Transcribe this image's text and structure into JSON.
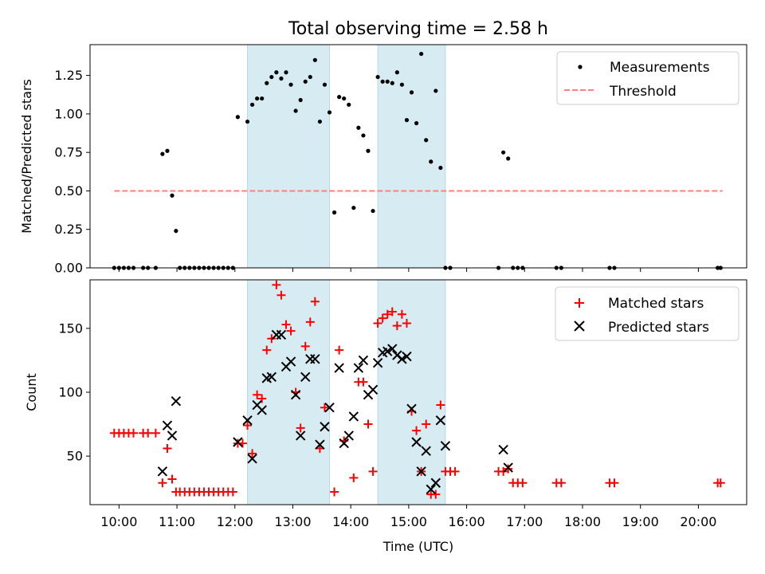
{
  "chart_data": [
    {
      "panel": "top",
      "type": "scatter",
      "title": "Total observing time = 2.58 h",
      "xlabel": "",
      "ylabel": "Matched/Predicted stars",
      "ylim": [
        0.0,
        1.45
      ],
      "yticks": [
        "0.00",
        "0.25",
        "0.50",
        "0.75",
        "1.00",
        "1.25"
      ],
      "ytick_values": [
        0,
        0.25,
        0.5,
        0.75,
        1.0,
        1.25
      ],
      "legend": {
        "placement": "top-right",
        "entries": [
          "Measurements",
          "Threshold"
        ]
      },
      "shaded_intervals_utc": [
        [
          "12:13",
          "13:38"
        ],
        [
          "14:28",
          "15:38"
        ]
      ],
      "colors": {
        "measurements": "#000000",
        "threshold": "#ff7f7f",
        "shade": "#add8e6"
      },
      "threshold": {
        "name": "Threshold",
        "value": 0.5,
        "x_range": [
          "09:55",
          "20:25"
        ]
      },
      "series": [
        {
          "name": "Measurements",
          "marker": "dot",
          "points": [
            [
              "09:55",
              0
            ],
            [
              "10:00",
              0
            ],
            [
              "10:05",
              0
            ],
            [
              "10:10",
              0
            ],
            [
              "10:15",
              0
            ],
            [
              "10:25",
              0
            ],
            [
              "10:30",
              0
            ],
            [
              "10:38",
              0
            ],
            [
              "10:45",
              0.74
            ],
            [
              "10:50",
              0.76
            ],
            [
              "10:55",
              0.47
            ],
            [
              "10:59",
              0.24
            ],
            [
              "11:03",
              0
            ],
            [
              "11:08",
              0
            ],
            [
              "11:13",
              0
            ],
            [
              "11:18",
              0
            ],
            [
              "11:23",
              0
            ],
            [
              "11:28",
              0
            ],
            [
              "11:33",
              0
            ],
            [
              "11:38",
              0
            ],
            [
              "11:43",
              0
            ],
            [
              "11:48",
              0
            ],
            [
              "11:53",
              0
            ],
            [
              "11:58",
              0
            ],
            [
              "12:03",
              0.98
            ],
            [
              "12:13",
              0.95
            ],
            [
              "12:18",
              1.06
            ],
            [
              "12:23",
              1.1
            ],
            [
              "12:28",
              1.1
            ],
            [
              "12:33",
              1.2
            ],
            [
              "12:38",
              1.24
            ],
            [
              "12:43",
              1.27
            ],
            [
              "12:48",
              1.23
            ],
            [
              "12:53",
              1.27
            ],
            [
              "12:58",
              1.19
            ],
            [
              "13:03",
              1.02
            ],
            [
              "13:08",
              1.09
            ],
            [
              "13:13",
              1.21
            ],
            [
              "13:18",
              1.24
            ],
            [
              "13:23",
              1.35
            ],
            [
              "13:28",
              0.95
            ],
            [
              "13:33",
              1.19
            ],
            [
              "13:38",
              1.01
            ],
            [
              "13:43",
              0.36
            ],
            [
              "13:48",
              1.11
            ],
            [
              "13:53",
              1.1
            ],
            [
              "13:58",
              1.06
            ],
            [
              "14:03",
              0.39
            ],
            [
              "14:08",
              0.91
            ],
            [
              "14:13",
              0.86
            ],
            [
              "14:18",
              0.76
            ],
            [
              "14:23",
              0.37
            ],
            [
              "14:28",
              1.24
            ],
            [
              "14:33",
              1.21
            ],
            [
              "14:38",
              1.21
            ],
            [
              "14:43",
              1.2
            ],
            [
              "14:48",
              1.27
            ],
            [
              "14:53",
              1.19
            ],
            [
              "14:58",
              0.96
            ],
            [
              "15:03",
              1.14
            ],
            [
              "15:08",
              0.94
            ],
            [
              "15:13",
              1.39
            ],
            [
              "15:18",
              0.83
            ],
            [
              "15:23",
              0.69
            ],
            [
              "15:28",
              1.15
            ],
            [
              "15:33",
              0.65
            ],
            [
              "15:38",
              0
            ],
            [
              "15:43",
              0
            ],
            [
              "16:33",
              0
            ],
            [
              "16:38",
              0.75
            ],
            [
              "16:43",
              0.71
            ],
            [
              "16:48",
              0
            ],
            [
              "16:53",
              0
            ],
            [
              "16:58",
              0
            ],
            [
              "17:33",
              0
            ],
            [
              "17:38",
              0
            ],
            [
              "18:28",
              0
            ],
            [
              "18:33",
              0
            ],
            [
              "20:20",
              0
            ],
            [
              "20:23",
              0
            ]
          ]
        }
      ]
    },
    {
      "panel": "bottom",
      "type": "scatter",
      "xlabel": "Time (UTC)",
      "ylabel": "Count",
      "ylim": [
        12,
        188
      ],
      "yticks": [
        "50",
        "100",
        "150"
      ],
      "ytick_values": [
        50,
        100,
        150
      ],
      "xlim": [
        "09:30",
        "20:50"
      ],
      "xticks": [
        "10:00",
        "11:00",
        "12:00",
        "13:00",
        "14:00",
        "15:00",
        "16:00",
        "17:00",
        "18:00",
        "19:00",
        "20:00"
      ],
      "legend": {
        "placement": "top-right",
        "entries": [
          "Matched stars",
          "Predicted stars"
        ]
      },
      "shaded_intervals_utc": [
        [
          "12:13",
          "13:38"
        ],
        [
          "14:28",
          "15:38"
        ]
      ],
      "colors": {
        "matched": "#ff0000",
        "predicted": "#000000",
        "shade": "#add8e6"
      },
      "series": [
        {
          "name": "Matched stars",
          "marker": "plus",
          "points": [
            [
              "09:55",
              68
            ],
            [
              "10:00",
              68
            ],
            [
              "10:05",
              68
            ],
            [
              "10:10",
              68
            ],
            [
              "10:15",
              68
            ],
            [
              "10:25",
              68
            ],
            [
              "10:30",
              68
            ],
            [
              "10:38",
              68
            ],
            [
              "10:45",
              29
            ],
            [
              "10:50",
              56
            ],
            [
              "10:55",
              32
            ],
            [
              "10:59",
              22
            ],
            [
              "11:03",
              22
            ],
            [
              "11:08",
              22
            ],
            [
              "11:13",
              22
            ],
            [
              "11:18",
              22
            ],
            [
              "11:23",
              22
            ],
            [
              "11:28",
              22
            ],
            [
              "11:33",
              22
            ],
            [
              "11:38",
              22
            ],
            [
              "11:43",
              22
            ],
            [
              "11:48",
              22
            ],
            [
              "11:53",
              22
            ],
            [
              "11:58",
              22
            ],
            [
              "12:03",
              60
            ],
            [
              "12:08",
              60
            ],
            [
              "12:13",
              74
            ],
            [
              "12:18",
              52
            ],
            [
              "12:23",
              98
            ],
            [
              "12:28",
              95
            ],
            [
              "12:33",
              133
            ],
            [
              "12:38",
              142
            ],
            [
              "12:43",
              184
            ],
            [
              "12:48",
              176
            ],
            [
              "12:53",
              153
            ],
            [
              "12:58",
              148
            ],
            [
              "13:03",
              100
            ],
            [
              "13:08",
              72
            ],
            [
              "13:13",
              136
            ],
            [
              "13:18",
              155
            ],
            [
              "13:23",
              171
            ],
            [
              "13:28",
              56
            ],
            [
              "13:33",
              88
            ],
            [
              "13:43",
              22
            ],
            [
              "13:48",
              133
            ],
            [
              "13:53",
              62
            ],
            [
              "14:03",
              33
            ],
            [
              "14:08",
              108
            ],
            [
              "14:13",
              108
            ],
            [
              "14:18",
              75
            ],
            [
              "14:23",
              38
            ],
            [
              "14:28",
              154
            ],
            [
              "14:33",
              158
            ],
            [
              "14:38",
              161
            ],
            [
              "14:43",
              163
            ],
            [
              "14:48",
              152
            ],
            [
              "14:53",
              161
            ],
            [
              "14:58",
              154
            ],
            [
              "15:03",
              85
            ],
            [
              "15:08",
              70
            ],
            [
              "15:13",
              38
            ],
            [
              "15:18",
              75
            ],
            [
              "15:23",
              20
            ],
            [
              "15:28",
              20
            ],
            [
              "15:33",
              90
            ],
            [
              "15:38",
              38
            ],
            [
              "15:43",
              38
            ],
            [
              "15:48",
              38
            ],
            [
              "16:33",
              38
            ],
            [
              "16:38",
              38
            ],
            [
              "16:43",
              40
            ],
            [
              "16:48",
              29
            ],
            [
              "16:53",
              29
            ],
            [
              "16:58",
              29
            ],
            [
              "17:33",
              29
            ],
            [
              "17:38",
              29
            ],
            [
              "18:28",
              29
            ],
            [
              "18:33",
              29
            ],
            [
              "20:20",
              29
            ],
            [
              "20:23",
              29
            ]
          ]
        },
        {
          "name": "Predicted stars",
          "marker": "x",
          "points": [
            [
              "10:45",
              38
            ],
            [
              "10:50",
              74
            ],
            [
              "10:55",
              66
            ],
            [
              "10:59",
              93
            ],
            [
              "12:03",
              61
            ],
            [
              "12:13",
              78
            ],
            [
              "12:18",
              48
            ],
            [
              "12:23",
              90
            ],
            [
              "12:28",
              86
            ],
            [
              "12:33",
              111
            ],
            [
              "12:38",
              112
            ],
            [
              "12:43",
              145
            ],
            [
              "12:48",
              145
            ],
            [
              "12:53",
              120
            ],
            [
              "12:58",
              124
            ],
            [
              "13:03",
              98
            ],
            [
              "13:08",
              66
            ],
            [
              "13:13",
              112
            ],
            [
              "13:18",
              126
            ],
            [
              "13:23",
              126
            ],
            [
              "13:28",
              59
            ],
            [
              "13:33",
              73
            ],
            [
              "13:38",
              88
            ],
            [
              "13:48",
              119
            ],
            [
              "13:53",
              60
            ],
            [
              "13:58",
              66
            ],
            [
              "14:03",
              81
            ],
            [
              "14:08",
              119
            ],
            [
              "14:13",
              125
            ],
            [
              "14:18",
              98
            ],
            [
              "14:23",
              102
            ],
            [
              "14:28",
              123
            ],
            [
              "14:33",
              131
            ],
            [
              "14:38",
              132
            ],
            [
              "14:43",
              134
            ],
            [
              "14:48",
              129
            ],
            [
              "14:53",
              126
            ],
            [
              "14:58",
              128
            ],
            [
              "15:03",
              87
            ],
            [
              "15:08",
              61
            ],
            [
              "15:13",
              38
            ],
            [
              "15:18",
              54
            ],
            [
              "15:23",
              24
            ],
            [
              "15:28",
              29
            ],
            [
              "15:33",
              78
            ],
            [
              "15:38",
              58
            ],
            [
              "16:38",
              55
            ],
            [
              "16:43",
              41
            ]
          ]
        }
      ]
    }
  ]
}
